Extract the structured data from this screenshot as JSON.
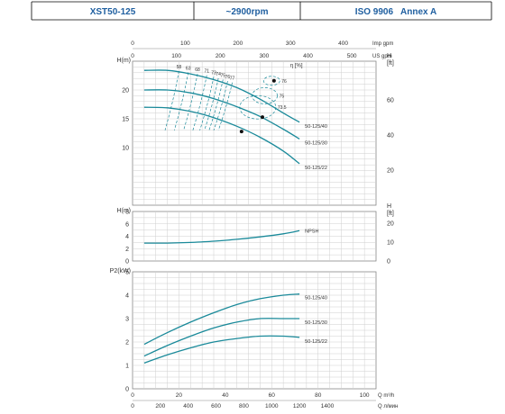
{
  "header": {
    "model": "XST50-125",
    "speed": "~2900rpm",
    "standard": "ISO 9906   Annex A"
  },
  "colors": {
    "curve": "#1a8a9a",
    "grid": "#cfcfcf",
    "text": "#333333",
    "header_text": "#1f5fa0"
  },
  "chart_data": [
    {
      "type": "line",
      "panel": "head",
      "ylabel": "H(m)",
      "ylabel_right": "H [ft]",
      "ylim": [
        0,
        25
      ],
      "yticks": [
        10,
        15,
        20
      ],
      "yticks_right": [
        20,
        40,
        60
      ],
      "top_axis_imp": {
        "label": "Imp gpm",
        "ticks": [
          0,
          100,
          200,
          300,
          400
        ]
      },
      "top_axis_us": {
        "label": "US gpm",
        "ticks": [
          0,
          100,
          200,
          300,
          400,
          500
        ]
      },
      "series": [
        {
          "name": "50-125/40",
          "x": [
            5,
            15,
            25,
            35,
            45,
            55,
            65,
            72
          ],
          "y": [
            23.4,
            23.4,
            22.8,
            21.8,
            20.4,
            18.4,
            16.0,
            14.4
          ]
        },
        {
          "name": "50-125/30",
          "x": [
            5,
            15,
            25,
            35,
            45,
            55,
            65,
            72
          ],
          "y": [
            20.0,
            20.0,
            19.5,
            18.5,
            17.1,
            15.4,
            13.2,
            11.5
          ]
        },
        {
          "name": "50-125/22",
          "x": [
            5,
            15,
            25,
            35,
            45,
            55,
            65,
            72
          ],
          "y": [
            17.0,
            16.9,
            16.3,
            15.2,
            13.7,
            11.8,
            9.4,
            7.2
          ]
        }
      ],
      "efficiency": {
        "label": "η [%]",
        "labels": [
          "58",
          "63",
          "68",
          "71",
          "73",
          "74",
          "75",
          "76",
          "77",
          "76",
          "75",
          "73.5"
        ],
        "best_points": [
          {
            "x": 61,
            "y": 21.6
          },
          {
            "x": 56,
            "y": 15.3
          },
          {
            "x": 47,
            "y": 12.8
          }
        ]
      }
    },
    {
      "type": "line",
      "panel": "npsh",
      "ylabel": "H(m)",
      "ylabel_right": "H [ft]",
      "ylim": [
        0,
        8
      ],
      "yticks": [
        0,
        2,
        4,
        6,
        8
      ],
      "yticks_right": [
        0,
        10,
        20
      ],
      "series": [
        {
          "name": "NPSH",
          "x": [
            5,
            15,
            25,
            35,
            45,
            55,
            65,
            72
          ],
          "y": [
            2.9,
            2.9,
            3.0,
            3.2,
            3.5,
            3.9,
            4.4,
            4.9
          ]
        }
      ]
    },
    {
      "type": "line",
      "panel": "power",
      "ylabel": "P2(kW)",
      "ylim": [
        0,
        5
      ],
      "yticks": [
        0,
        1,
        2,
        3,
        4,
        5
      ],
      "xlabel": "Q m³/h",
      "xlabel2": "Q л/мин",
      "xticks": [
        0,
        20,
        40,
        60,
        80,
        100
      ],
      "xticks_lmin": [
        0,
        200,
        400,
        600,
        800,
        1000,
        1200,
        1400
      ],
      "xlim": [
        0,
        105
      ],
      "series": [
        {
          "name": "50-125/40",
          "x": [
            5,
            15,
            25,
            35,
            45,
            55,
            65,
            72
          ],
          "y": [
            1.9,
            2.4,
            2.85,
            3.25,
            3.6,
            3.85,
            4.0,
            4.05
          ]
        },
        {
          "name": "50-125/30",
          "x": [
            5,
            15,
            25,
            35,
            45,
            55,
            65,
            72
          ],
          "y": [
            1.4,
            1.85,
            2.25,
            2.6,
            2.85,
            3.0,
            3.0,
            3.0
          ]
        },
        {
          "name": "50-125/22",
          "x": [
            5,
            15,
            25,
            35,
            45,
            55,
            65,
            72
          ],
          "y": [
            1.1,
            1.45,
            1.75,
            2.0,
            2.15,
            2.25,
            2.25,
            2.2
          ]
        }
      ]
    }
  ]
}
